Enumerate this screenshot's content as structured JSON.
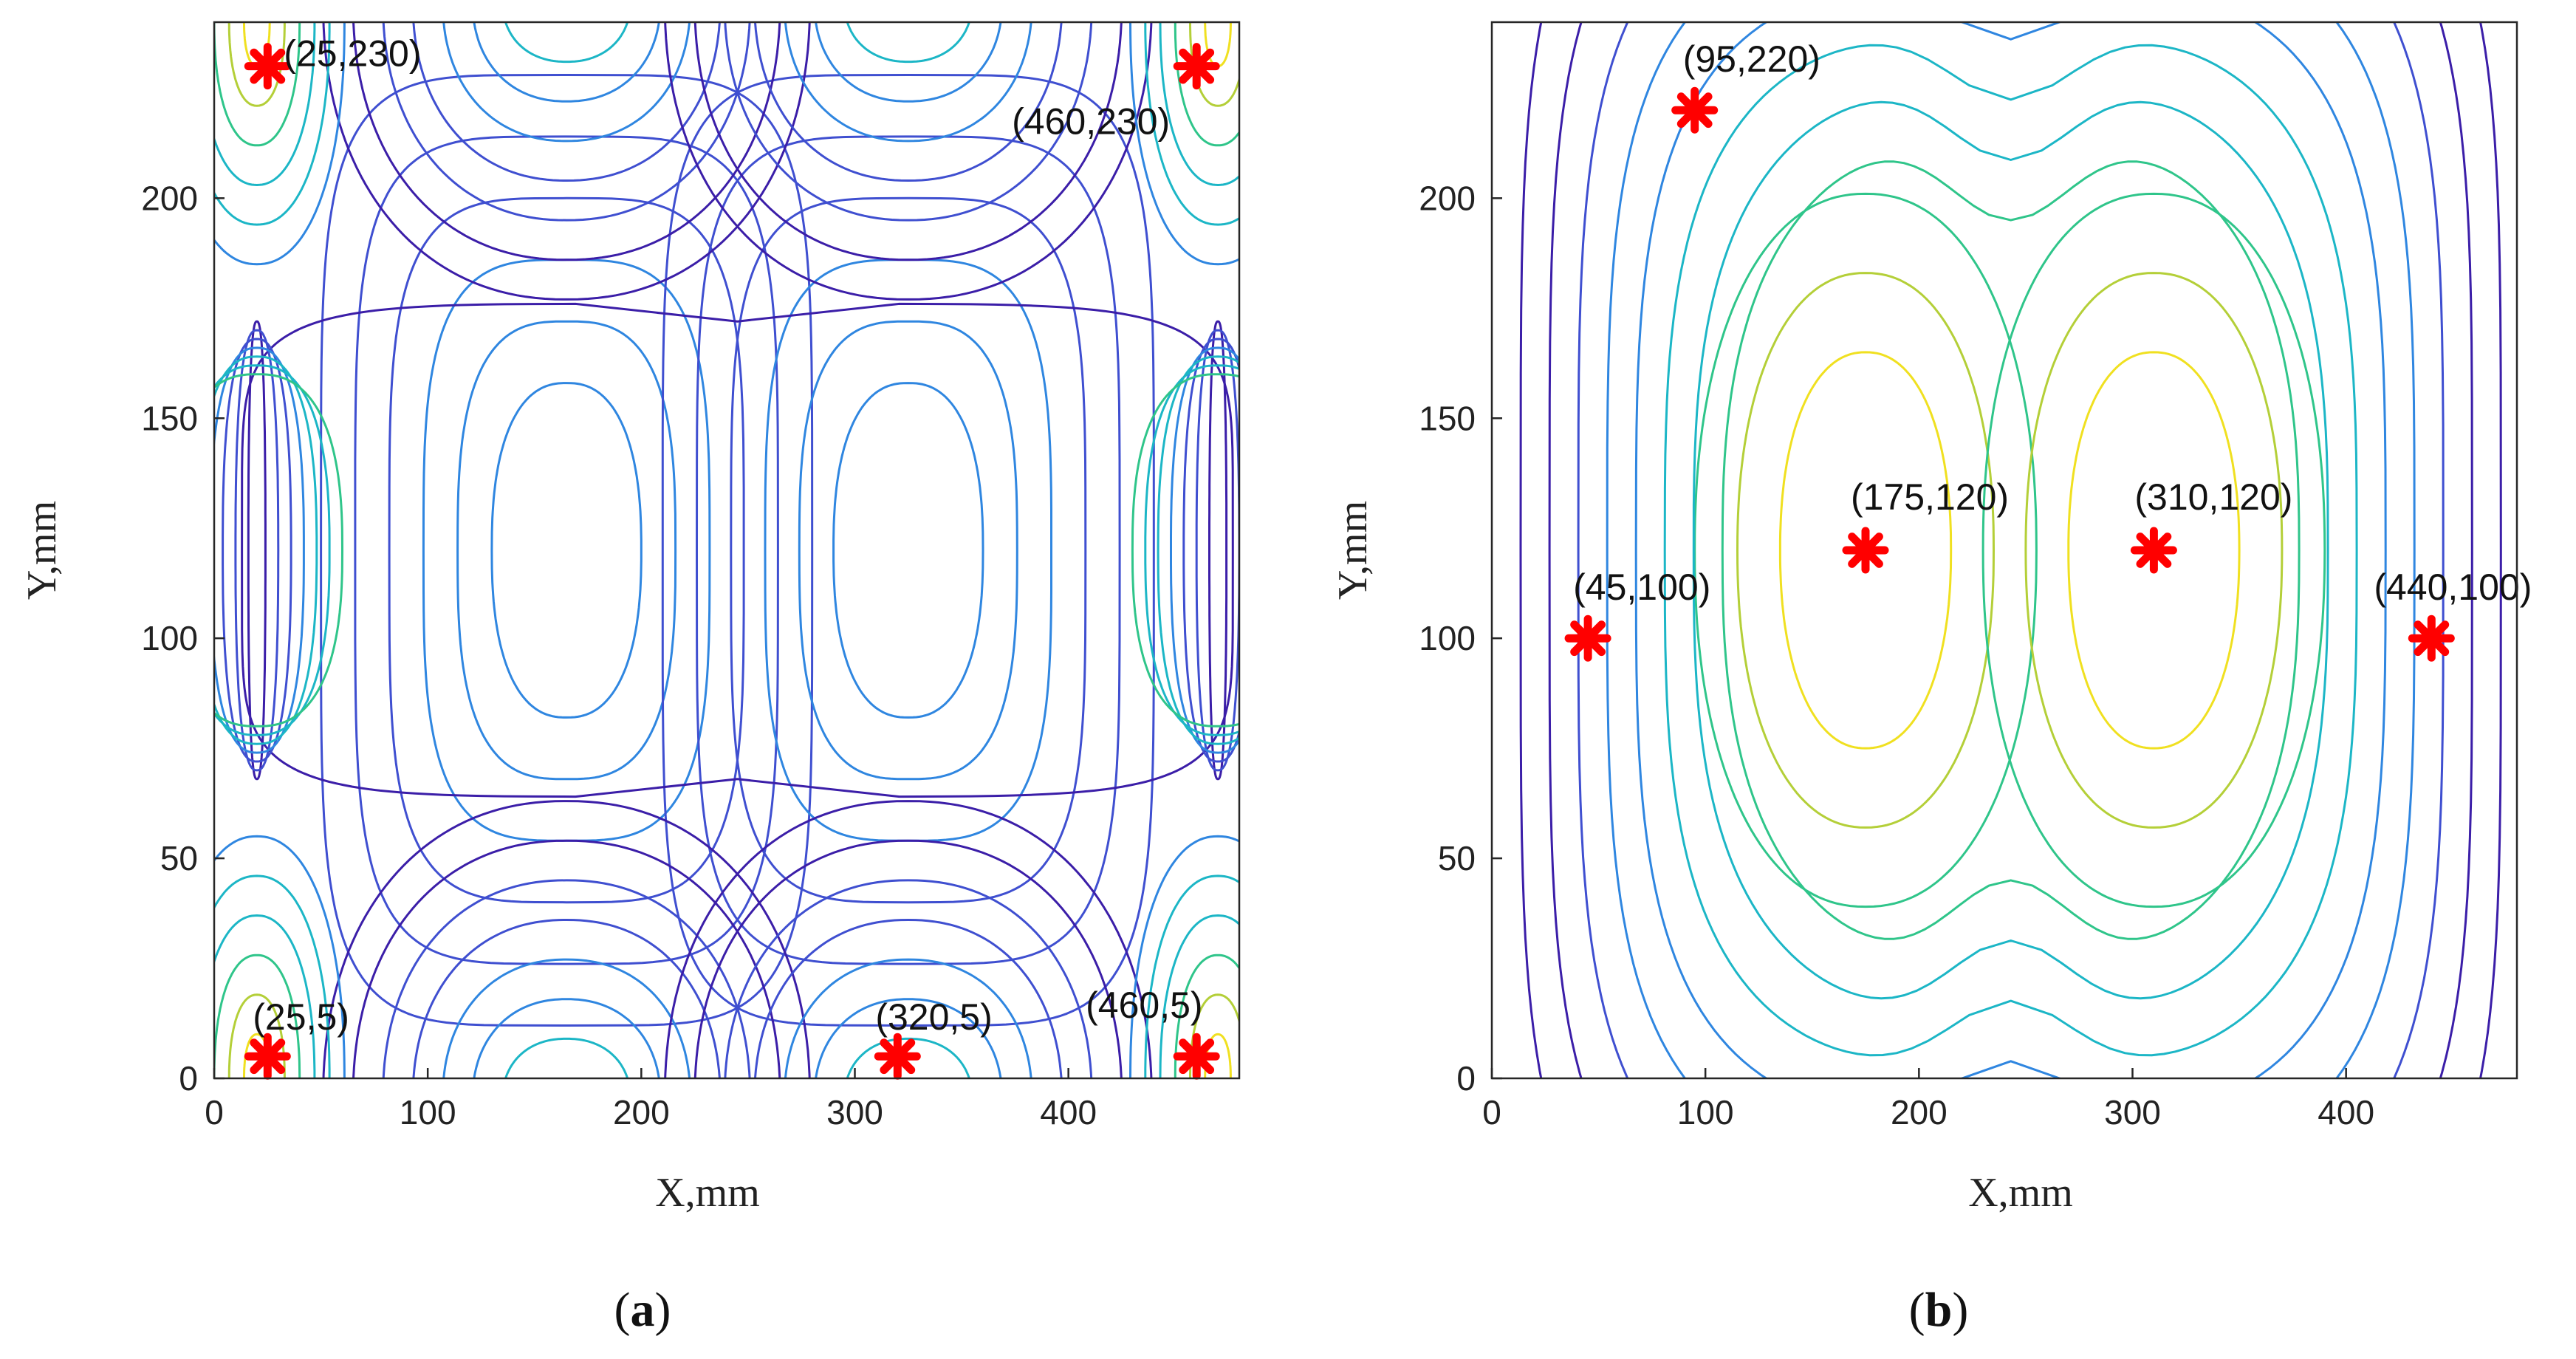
{
  "chart_data": [
    {
      "type": "contour",
      "panel": "a",
      "xlabel": "X,mm",
      "ylabel": "Y,mm",
      "xlim": [
        0,
        480
      ],
      "ylim": [
        0,
        240
      ],
      "xticks": [
        0,
        100,
        200,
        300,
        400
      ],
      "yticks": [
        0,
        50,
        100,
        150,
        200
      ],
      "grid": false,
      "colormap": [
        "#3b1ea8",
        "#3f4fd0",
        "#2f86e0",
        "#1cb6c6",
        "#2fc58a",
        "#b4cf38",
        "#f0e020"
      ],
      "points": [
        {
          "x": 25,
          "y": 230,
          "label": "(25,230)"
        },
        {
          "x": 460,
          "y": 230,
          "label": "(460,230)"
        },
        {
          "x": 25,
          "y": 5,
          "label": "(25,5)"
        },
        {
          "x": 320,
          "y": 5,
          "label": "(320,5)"
        },
        {
          "x": 460,
          "y": 5,
          "label": "(460,5)"
        }
      ],
      "marker_color": "#ff0000"
    },
    {
      "type": "contour",
      "panel": "b",
      "xlabel": "X,mm",
      "ylabel": "Y,mm",
      "xlim": [
        0,
        480
      ],
      "ylim": [
        0,
        240
      ],
      "xticks": [
        0,
        100,
        200,
        300,
        400
      ],
      "yticks": [
        0,
        50,
        100,
        150,
        200
      ],
      "grid": false,
      "colormap": [
        "#3b1ea8",
        "#3f4fd0",
        "#2f86e0",
        "#1cb6c6",
        "#2fc58a",
        "#b4cf38",
        "#f0e020"
      ],
      "points": [
        {
          "x": 95,
          "y": 220,
          "label": "(95,220)"
        },
        {
          "x": 175,
          "y": 120,
          "label": "(175,120)"
        },
        {
          "x": 310,
          "y": 120,
          "label": "(310,120)"
        },
        {
          "x": 45,
          "y": 100,
          "label": "(45,100)"
        },
        {
          "x": 440,
          "y": 100,
          "label": "(440,100)"
        }
      ],
      "marker_color": "#ff0000"
    }
  ],
  "panel_labels": [
    "a",
    "b"
  ]
}
